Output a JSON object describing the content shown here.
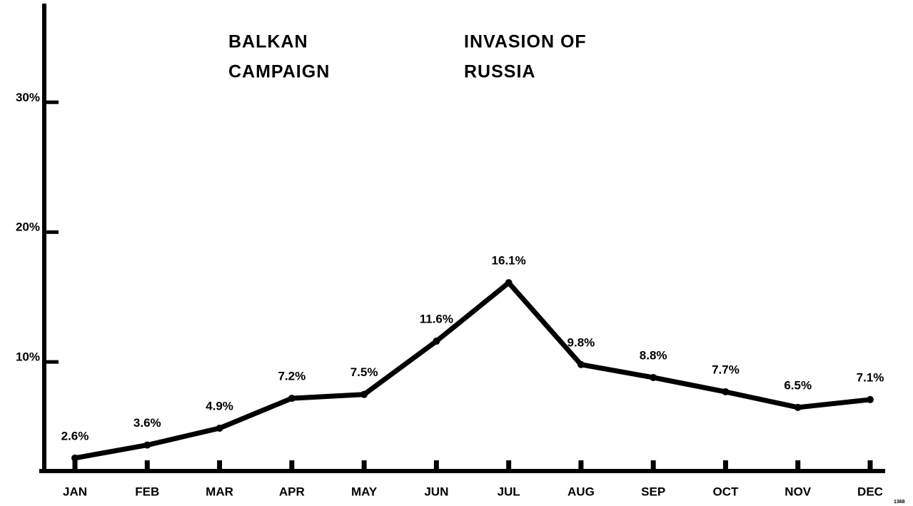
{
  "chart_data": {
    "type": "line",
    "annotations": [
      [
        "BALKAN",
        "CAMPAIGN"
      ],
      [
        "INVASION OF",
        "RUSSIA"
      ]
    ],
    "footnote": "1368",
    "categories": [
      "JAN",
      "FEB",
      "MAR",
      "APR",
      "MAY",
      "JUN",
      "JUL",
      "AUG",
      "SEP",
      "OCT",
      "NOV",
      "DEC"
    ],
    "values": [
      2.6,
      3.6,
      4.9,
      7.2,
      7.5,
      11.6,
      16.1,
      9.8,
      8.8,
      7.7,
      6.5,
      7.1
    ],
    "value_labels": [
      "2.6%",
      "3.6%",
      "4.9%",
      "7.2%",
      "7.5%",
      "11.6%",
      "16.1%",
      "9.8%",
      "8.8%",
      "7.7%",
      "6.5%",
      "7.1%"
    ],
    "color": "#000000",
    "ylim": [
      1.6,
      37.6
    ],
    "yticks": [
      {
        "value": 10,
        "label": "10%"
      },
      {
        "value": 20,
        "label": "20%"
      },
      {
        "value": 30,
        "label": "30%"
      }
    ]
  }
}
